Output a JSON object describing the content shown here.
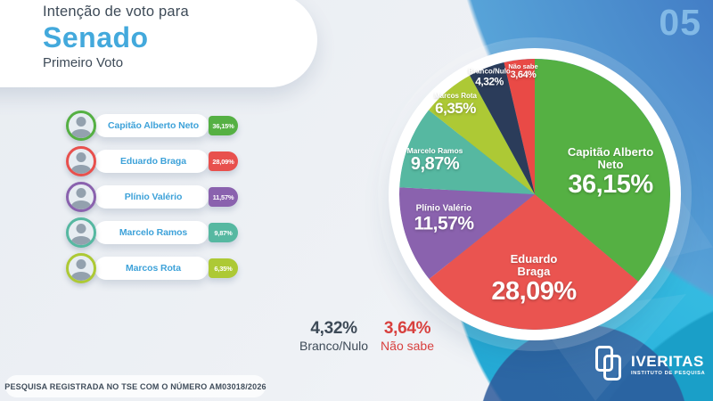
{
  "header": {
    "eyebrow": "Intenção de voto para",
    "title": "Senado",
    "subtitle": "Primeiro Voto"
  },
  "page_number": "05",
  "candidates": [
    {
      "name": "Capitão Alberto Neto",
      "pct": "36,15%",
      "color": "#55b043"
    },
    {
      "name": "Eduardo Braga",
      "pct": "28,09%",
      "color": "#e8504d"
    },
    {
      "name": "Plínio Valério",
      "pct": "11,57%",
      "color": "#8a62ae"
    },
    {
      "name": "Marcelo Ramos",
      "pct": "9,87%",
      "color": "#56b8a1"
    },
    {
      "name": "Marcos Rota",
      "pct": "6,35%",
      "color": "#adc935"
    }
  ],
  "chart_data": {
    "type": "pie",
    "title": "Intenção de voto para Senado - Primeiro Voto",
    "start_angle_deg": 0,
    "direction": "clockwise",
    "slices": [
      {
        "label": "Capitão Alberto Neto",
        "value": 36.15,
        "display": "36,15%",
        "color": "#55b043"
      },
      {
        "label": "Eduardo Braga",
        "value": 28.09,
        "display": "28,09%",
        "color": "#ea5450"
      },
      {
        "label": "Plínio Valério",
        "value": 11.57,
        "display": "11,57%",
        "color": "#8a62ae"
      },
      {
        "label": "Marcelo Ramos",
        "value": 9.87,
        "display": "9,87%",
        "color": "#56b8a1"
      },
      {
        "label": "Marcos Rota",
        "value": 6.35,
        "display": "6,35%",
        "color": "#adc935"
      },
      {
        "label": "Branco/Nulo",
        "value": 4.32,
        "display": "4,32%",
        "color": "#2b3c5a"
      },
      {
        "label": "Não sabe",
        "value": 3.64,
        "display": "3,64%",
        "color": "#e94a46"
      }
    ]
  },
  "summary": {
    "branco": {
      "pct": "4,32%",
      "label": "Branco/Nulo"
    },
    "nao_sabe": {
      "pct": "3,64%",
      "label": "Não sabe"
    }
  },
  "footer": {
    "registration": "PESQUISA REGISTRADA NO TSE COM O NÚMERO AM03018/2026"
  },
  "logo": {
    "name": "IVERITAS",
    "tagline": "INSTITUTO DE PESQUISA"
  },
  "colors": {
    "title_accent": "#43a9dc",
    "candidate_name_blue": "#3ea2d9",
    "dark_text": "#3d4a57",
    "nao_sabe_red": "#d8403e",
    "page_number_blue": "#82b9e6",
    "background_blue": "#3f76c2",
    "background_teal": "#29b2dc"
  }
}
